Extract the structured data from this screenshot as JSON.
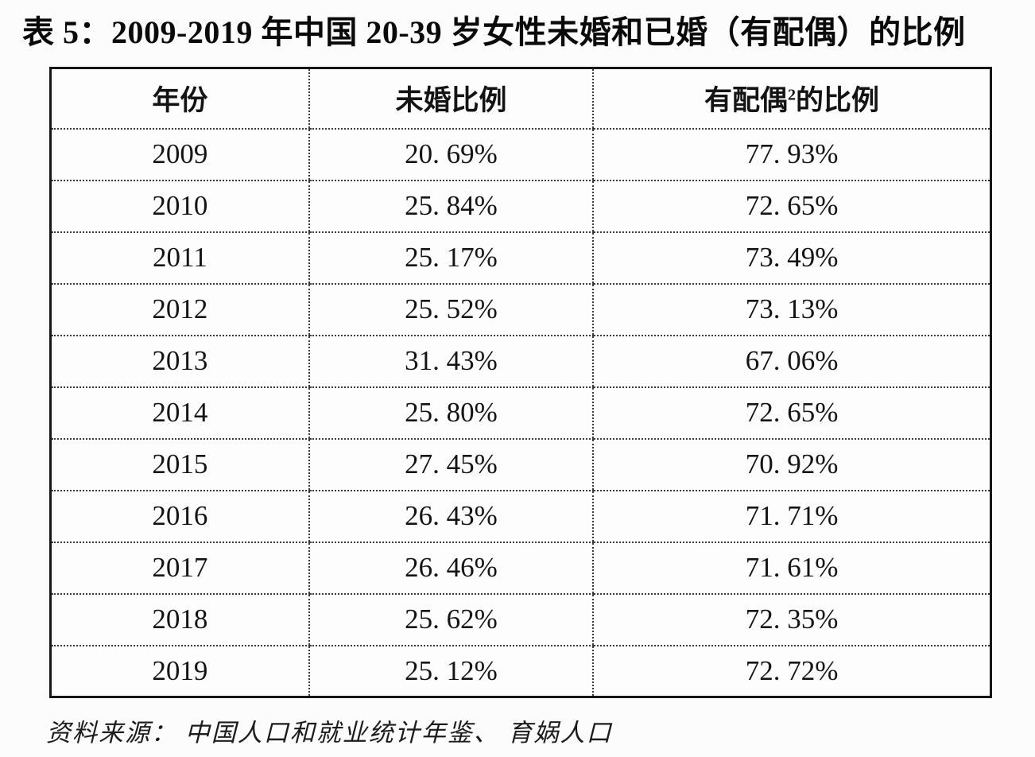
{
  "title": "表 5：2009-2019 年中国 20-39 岁女性未婚和已婚（有配偶）的比例",
  "table": {
    "headers": {
      "year": "年份",
      "unmarried": "未婚比例",
      "married_prefix": "有配偶",
      "married_sup": "2",
      "married_suffix": "的比例"
    },
    "rows": [
      {
        "year": "2009",
        "unmarried": "20. 69%",
        "married": "77. 93%"
      },
      {
        "year": "2010",
        "unmarried": "25. 84%",
        "married": "72. 65%"
      },
      {
        "year": "2011",
        "unmarried": "25. 17%",
        "married": "73. 49%"
      },
      {
        "year": "2012",
        "unmarried": "25. 52%",
        "married": "73. 13%"
      },
      {
        "year": "2013",
        "unmarried": "31. 43%",
        "married": "67. 06%"
      },
      {
        "year": "2014",
        "unmarried": "25. 80%",
        "married": "72. 65%"
      },
      {
        "year": "2015",
        "unmarried": "27. 45%",
        "married": "70. 92%"
      },
      {
        "year": "2016",
        "unmarried": "26. 43%",
        "married": "71. 71%"
      },
      {
        "year": "2017",
        "unmarried": "26. 46%",
        "married": "71. 61%"
      },
      {
        "year": "2018",
        "unmarried": "25. 62%",
        "married": "72. 35%"
      },
      {
        "year": "2019",
        "unmarried": "25. 12%",
        "married": "72. 72%"
      }
    ]
  },
  "source": "资料来源： 中国人口和就业统计年鉴、 育娲人口",
  "colors": {
    "background": "#fcfcfc",
    "text": "#111111",
    "table_border": "#161616",
    "grid_dotted": "#3a3a3a"
  },
  "chart_data": {
    "type": "table",
    "title": "表 5：2009-2019 年中国 20-39 岁女性未婚和已婚（有配偶）的比例",
    "columns": [
      "年份",
      "未婚比例",
      "有配偶的比例"
    ],
    "years": [
      2009,
      2010,
      2011,
      2012,
      2013,
      2014,
      2015,
      2016,
      2017,
      2018,
      2019
    ],
    "series": [
      {
        "name": "未婚比例",
        "unit": "%",
        "values": [
          20.69,
          25.84,
          25.17,
          25.52,
          31.43,
          25.8,
          27.45,
          26.43,
          26.46,
          25.62,
          25.12
        ]
      },
      {
        "name": "有配偶的比例",
        "unit": "%",
        "values": [
          77.93,
          72.65,
          73.49,
          73.13,
          67.06,
          72.65,
          70.92,
          71.71,
          71.61,
          72.35,
          72.72
        ]
      }
    ],
    "source": "中国人口和就业统计年鉴、育娲人口"
  }
}
